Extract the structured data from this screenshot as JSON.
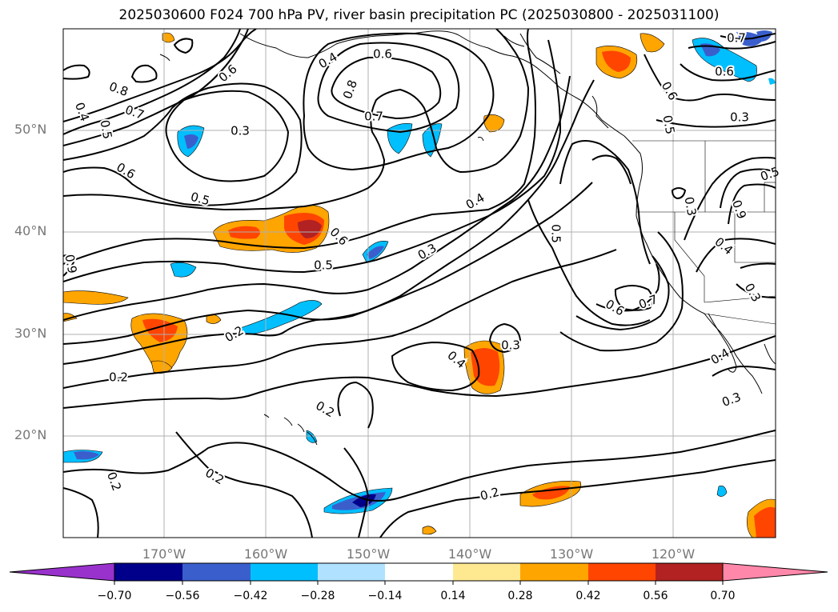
{
  "title": "2025030600 F024 700 hPa PV, river basin precipitation PC (2025030800 - 2025031100)",
  "lat_labels": [
    "50°N",
    "40°N",
    "30°N",
    "20°N"
  ],
  "lon_labels": [
    "170°W",
    "160°W",
    "150°W",
    "140°W",
    "130°W",
    "120°W"
  ],
  "colorbar": {
    "ticks": [
      "−0.70",
      "−0.56",
      "−0.42",
      "−0.28",
      "−0.14",
      "0.14",
      "0.28",
      "0.42",
      "0.56",
      "0.70"
    ],
    "colors": [
      "#9932cc",
      "#00008b",
      "#3a5fcd",
      "#00bfff",
      "#b0e2ff",
      "#ffffff",
      "#ffe990",
      "#ffa500",
      "#ff4500",
      "#b22222",
      "#ff88aa"
    ]
  },
  "contour_labels": [
    "0.6",
    "0.4",
    "0.8",
    "0.6",
    "0.7",
    "0.8",
    "0.7",
    "0.4",
    "0.5",
    "0.3",
    "0.6",
    "0.5",
    "0.6",
    "0.5",
    "0.9",
    "0.4",
    "0.3",
    "0.5",
    "0.6",
    "0.7",
    "0.2",
    "0.2",
    "0.4",
    "0.3",
    "0.2",
    "0.2",
    "0.2",
    "0.2",
    "0.3",
    "0.4",
    "0.6",
    "0.5",
    "0.5",
    "0.3",
    "0.9",
    "0.4",
    "0.3",
    "0.6",
    "0.3",
    "0.7"
  ]
}
